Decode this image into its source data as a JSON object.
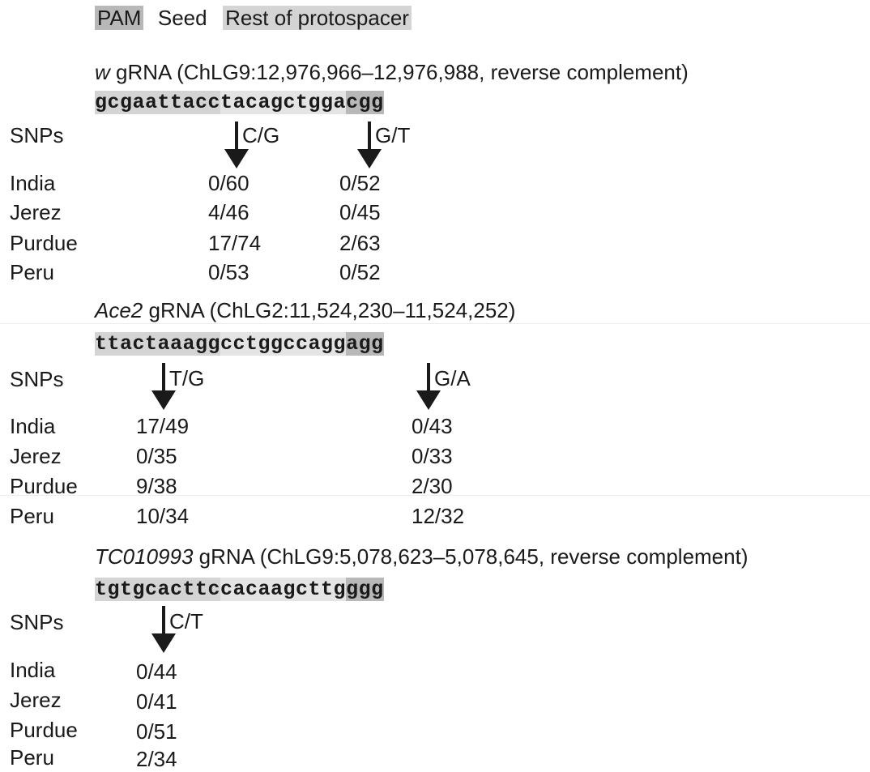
{
  "legend": {
    "pam": "PAM",
    "seed": "Seed",
    "rest": "Rest of protospacer"
  },
  "row_labels": {
    "snps": "SNPs",
    "pops": [
      "India",
      "Jerez",
      "Purdue",
      "Peru"
    ]
  },
  "colors": {
    "pam": "#b8b8b8",
    "rest": "#d4d4d4",
    "seed": "#e4e4e4",
    "text": "#1a1a1a"
  },
  "panels": [
    {
      "gene": "w",
      "title_rest": " gRNA (ChLG9:12,976,966–12,976,988, reverse complement)",
      "seq": {
        "rest": "gcgaattacc",
        "seed": "tacagctgga",
        "pam": "cgg"
      },
      "snps": [
        {
          "label": "C/G",
          "counts": [
            "0/60",
            "4/46",
            "17/74",
            "0/53"
          ]
        },
        {
          "label": "G/T",
          "counts": [
            "0/52",
            "0/45",
            "2/63",
            "0/52"
          ]
        }
      ]
    },
    {
      "gene": "Ace2",
      "title_rest": " gRNA (ChLG2:11,524,230–11,524,252)",
      "seq": {
        "rest": "ttactaaagg",
        "seed": "cctggccagg",
        "pam": "agg"
      },
      "snps": [
        {
          "label": "T/G",
          "counts": [
            "17/49",
            "0/35",
            "9/38",
            "10/34"
          ]
        },
        {
          "label": "G/A",
          "counts": [
            "0/43",
            "0/33",
            "2/30",
            "12/32"
          ]
        }
      ]
    },
    {
      "gene": "TC010993",
      "title_rest": " gRNA (ChLG9:5,078,623–5,078,645, reverse complement)",
      "seq": {
        "rest": "tgtgcacttc",
        "seed": "cacaagcttg",
        "pam": "ggg"
      },
      "snps": [
        {
          "label": "C/T",
          "counts": [
            "0/44",
            "0/41",
            "0/51",
            "2/34"
          ]
        }
      ]
    }
  ]
}
